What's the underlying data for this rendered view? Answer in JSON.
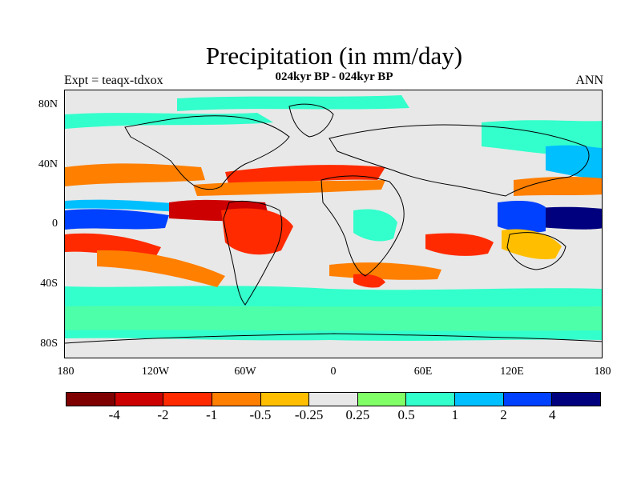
{
  "title": "Precipitation (in mm/day)",
  "subtitle": "024kyr BP - 024kyr BP",
  "left_label": "Expt = teaqx-tdxox",
  "right_label": "ANN",
  "map": {
    "projection": "cylindrical-equidistant",
    "lon_range": [
      -180,
      180
    ],
    "lat_range": [
      -90,
      90
    ],
    "y_ticks": [
      "80N",
      "40N",
      "0",
      "40S",
      "80S"
    ],
    "x_ticks": [
      "180",
      "120W",
      "60W",
      "0",
      "60E",
      "120E",
      "180"
    ]
  },
  "colorbar": {
    "colors": [
      "#7f0000",
      "#cc0000",
      "#ff2a00",
      "#ff7f00",
      "#ffbf00",
      "#e8e8e8",
      "#80ff66",
      "#33ffcc",
      "#00bfff",
      "#0040ff",
      "#00007f"
    ],
    "labels": [
      "-4",
      "-2",
      "-1",
      "-0.5",
      "-0.25",
      "0.25",
      "0.5",
      "1",
      "2",
      "4"
    ]
  }
}
